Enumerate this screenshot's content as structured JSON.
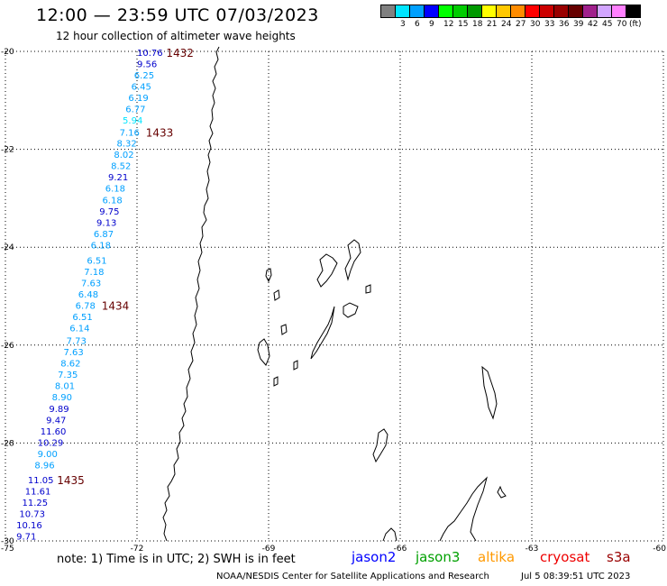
{
  "header": {
    "title": "12:00 — 23:59 UTC 07/03/2023",
    "subtitle": "12 hour collection of altimeter wave heights"
  },
  "legend": {
    "unit": "(ft)",
    "colors": [
      "#808080",
      "#00e5ff",
      "#00a0ff",
      "#0000ff",
      "#00ff00",
      "#00cc00",
      "#009900",
      "#ffff00",
      "#ffc800",
      "#ff8c00",
      "#ff0000",
      "#cc0000",
      "#990000",
      "#660000",
      "#a0208c",
      "#d2a5ff",
      "#ff80ff",
      "#000000"
    ],
    "labels": [
      "3",
      "6",
      "9",
      "12",
      "15",
      "18",
      "21",
      "24",
      "27",
      "30",
      "33",
      "36",
      "39",
      "42",
      "45",
      "70"
    ]
  },
  "axes": {
    "y_labels": [
      "-20",
      "-22",
      "-24",
      "-26",
      "-28",
      "-30"
    ],
    "x_labels": [
      "-75",
      "-72",
      "-69",
      "-66",
      "-63",
      "-60"
    ]
  },
  "orbits": [
    {
      "label": "1432",
      "lat": -20.02
    },
    {
      "label": "1433",
      "lat": -21.65
    },
    {
      "label": "1434",
      "lat": -25.18
    },
    {
      "label": "1435",
      "lat": -28.75
    }
  ],
  "swh": [
    {
      "v": "10.76",
      "c": "#0000cc",
      "lat": -20.02
    },
    {
      "v": "9.56",
      "c": "#0000cc",
      "lat": -20.25
    },
    {
      "v": "6.25",
      "c": "#00a0ff",
      "lat": -20.48
    },
    {
      "v": "6.45",
      "c": "#00a0ff",
      "lat": -20.71
    },
    {
      "v": "6.19",
      "c": "#00a0ff",
      "lat": -20.94
    },
    {
      "v": "6.77",
      "c": "#00a0ff",
      "lat": -21.17
    },
    {
      "v": "5.94",
      "c": "#00e5ff",
      "lat": -21.4
    },
    {
      "v": "7.16",
      "c": "#00a0ff",
      "lat": -21.65
    },
    {
      "v": "8.32",
      "c": "#00a0ff",
      "lat": -21.87
    },
    {
      "v": "8.02",
      "c": "#00a0ff",
      "lat": -22.1
    },
    {
      "v": "8.52",
      "c": "#00a0ff",
      "lat": -22.33
    },
    {
      "v": "9.21",
      "c": "#0000cc",
      "lat": -22.56
    },
    {
      "v": "6.18",
      "c": "#00a0ff",
      "lat": -22.79
    },
    {
      "v": "6.18",
      "c": "#00a0ff",
      "lat": -23.03
    },
    {
      "v": "9.75",
      "c": "#0000cc",
      "lat": -23.26
    },
    {
      "v": "9.13",
      "c": "#0000cc",
      "lat": -23.49
    },
    {
      "v": "6.87",
      "c": "#00a0ff",
      "lat": -23.72
    },
    {
      "v": "6.18",
      "c": "#00a0ff",
      "lat": -23.95
    },
    {
      "v": "6.51",
      "c": "#00a0ff",
      "lat": -24.26
    },
    {
      "v": "7.18",
      "c": "#00a0ff",
      "lat": -24.49
    },
    {
      "v": "7.63",
      "c": "#00a0ff",
      "lat": -24.72
    },
    {
      "v": "6.48",
      "c": "#00a0ff",
      "lat": -24.95
    },
    {
      "v": "6.78",
      "c": "#00a0ff",
      "lat": -25.18
    },
    {
      "v": "6.51",
      "c": "#00a0ff",
      "lat": -25.41
    },
    {
      "v": "6.14",
      "c": "#00a0ff",
      "lat": -25.64
    },
    {
      "v": "7.73",
      "c": "#00a0ff",
      "lat": -25.9
    },
    {
      "v": "7.63",
      "c": "#00a0ff",
      "lat": -26.13
    },
    {
      "v": "8.62",
      "c": "#00a0ff",
      "lat": -26.36
    },
    {
      "v": "7.35",
      "c": "#00a0ff",
      "lat": -26.59
    },
    {
      "v": "8.01",
      "c": "#00a0ff",
      "lat": -26.82
    },
    {
      "v": "8.90",
      "c": "#00a0ff",
      "lat": -27.05
    },
    {
      "v": "9.89",
      "c": "#0000cc",
      "lat": -27.29
    },
    {
      "v": "9.47",
      "c": "#0000cc",
      "lat": -27.52
    },
    {
      "v": "11.60",
      "c": "#0000cc",
      "lat": -27.75
    },
    {
      "v": "10.29",
      "c": "#0000cc",
      "lat": -27.98
    },
    {
      "v": "9.00",
      "c": "#00a0ff",
      "lat": -28.21
    },
    {
      "v": "8.96",
      "c": "#00a0ff",
      "lat": -28.44
    },
    {
      "v": "11.05",
      "c": "#0000cc",
      "lat": -28.75
    },
    {
      "v": "11.61",
      "c": "#0000cc",
      "lat": -28.98
    },
    {
      "v": "11.25",
      "c": "#0000cc",
      "lat": -29.21
    },
    {
      "v": "10.73",
      "c": "#0000cc",
      "lat": -29.44
    },
    {
      "v": "10.16",
      "c": "#0000cc",
      "lat": -29.67
    },
    {
      "v": "9.71",
      "c": "#0000cc",
      "lat": -29.9
    }
  ],
  "footer": {
    "note": "note:  1) Time is in UTC;  2) SWH is in feet",
    "satellites": [
      {
        "name": "jason2",
        "color": "#0000ff"
      },
      {
        "name": "jason3",
        "color": "#00a000"
      },
      {
        "name": "altika",
        "color": "#ff9900"
      },
      {
        "name": "cryosat",
        "color": "#ee0000"
      },
      {
        "name": "s3a",
        "color": "#990000"
      }
    ],
    "credit": "NOAA/NESDIS Center for Satellite Applications and Research",
    "date": "Jul  5 08:39:51 UTC 2023"
  }
}
